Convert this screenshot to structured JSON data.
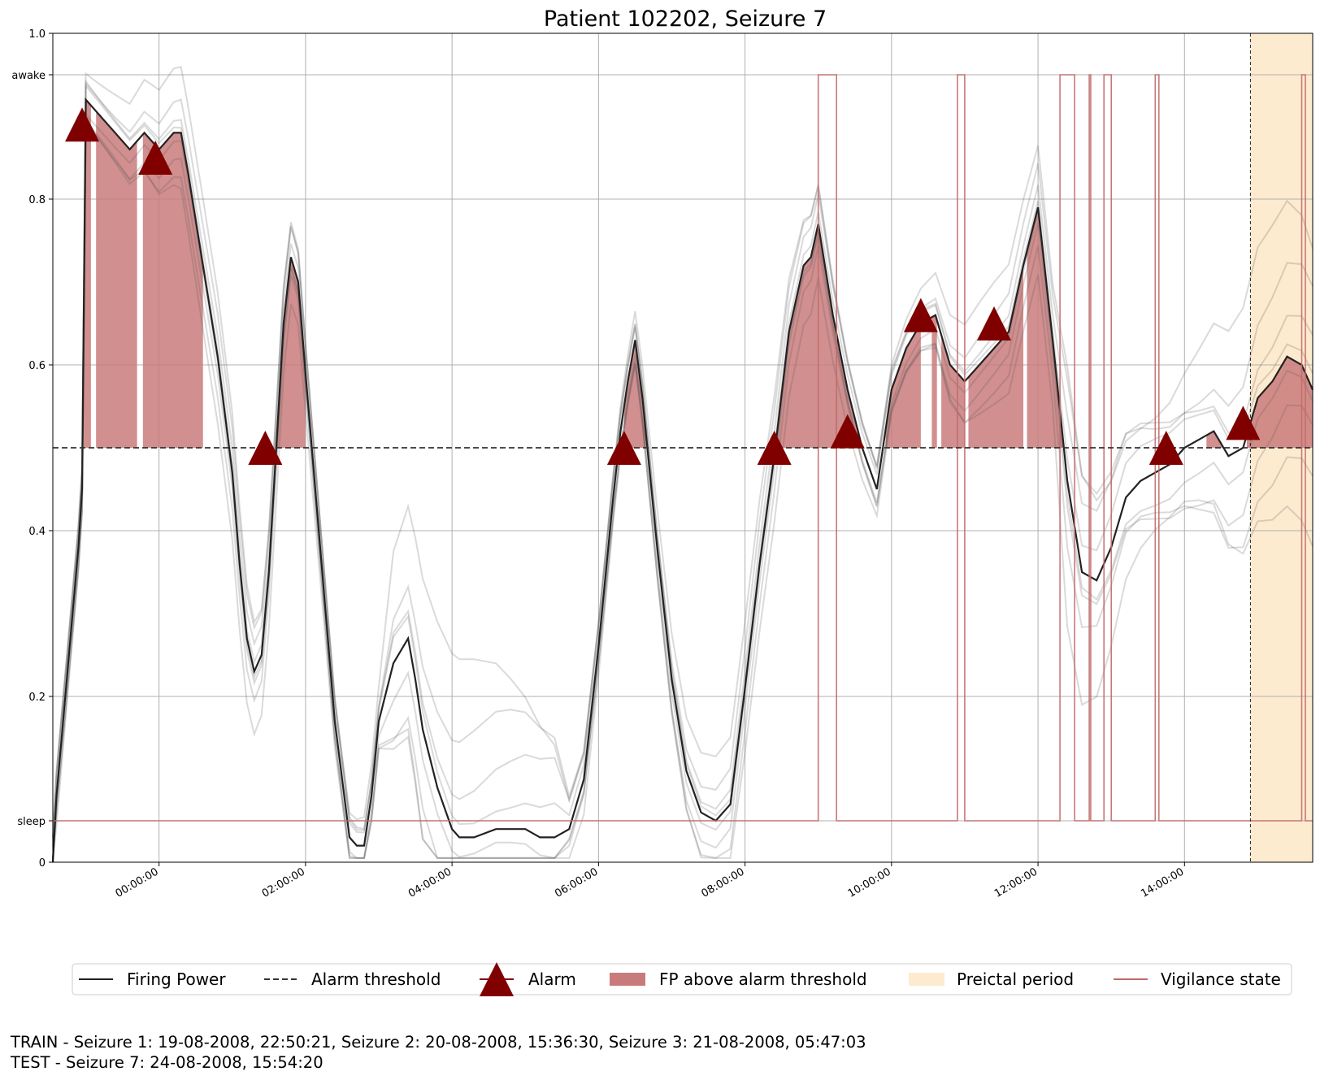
{
  "chart_data": {
    "type": "line",
    "title": "Patient 102202, Seizure 7",
    "xlabel": "",
    "ylabel": "",
    "x_unit": "hours relative to 00:00:00 (time of day)",
    "xlim": [
      -1.45,
      15.75
    ],
    "ylim": [
      0,
      1.0
    ],
    "y_ticks": [
      {
        "value": 0,
        "label": "0"
      },
      {
        "value": 0.05,
        "label": "sleep"
      },
      {
        "value": 0.2,
        "label": "0.2"
      },
      {
        "value": 0.4,
        "label": "0.4"
      },
      {
        "value": 0.6,
        "label": "0.6"
      },
      {
        "value": 0.8,
        "label": "0.8"
      },
      {
        "value": 0.95,
        "label": "awake"
      },
      {
        "value": 1.0,
        "label": "1.0"
      }
    ],
    "x_ticks": [
      {
        "value": 0,
        "label": "00:00:00"
      },
      {
        "value": 2,
        "label": "02:00:00"
      },
      {
        "value": 4,
        "label": "04:00:00"
      },
      {
        "value": 6,
        "label": "06:00:00"
      },
      {
        "value": 8,
        "label": "08:00:00"
      },
      {
        "value": 10,
        "label": "10:00:00"
      },
      {
        "value": 12,
        "label": "12:00:00"
      },
      {
        "value": 14,
        "label": "14:00:00"
      }
    ],
    "grid": true,
    "alarm_threshold": 0.5,
    "firing_power": {
      "name": "Firing Power",
      "x": [
        -1.45,
        -1.4,
        -1.3,
        -1.2,
        -1.1,
        -1.05,
        -1.0,
        -0.9,
        -0.8,
        -0.7,
        -0.6,
        -0.5,
        -0.4,
        -0.3,
        -0.2,
        -0.1,
        0.0,
        0.1,
        0.2,
        0.3,
        0.4,
        0.6,
        0.8,
        1.0,
        1.1,
        1.2,
        1.3,
        1.4,
        1.5,
        1.6,
        1.7,
        1.8,
        1.9,
        2.0,
        2.2,
        2.4,
        2.6,
        2.7,
        2.8,
        2.9,
        3.0,
        3.2,
        3.4,
        3.5,
        3.6,
        3.8,
        4.0,
        4.1,
        4.3,
        4.6,
        4.8,
        5.0,
        5.2,
        5.4,
        5.6,
        5.8,
        6.0,
        6.2,
        6.3,
        6.4,
        6.5,
        6.6,
        6.8,
        7.0,
        7.2,
        7.4,
        7.6,
        7.8,
        8.0,
        8.2,
        8.4,
        8.6,
        8.8,
        8.9,
        9.0,
        9.2,
        9.4,
        9.6,
        9.8,
        10.0,
        10.2,
        10.4,
        10.6,
        10.8,
        11.0,
        11.2,
        11.4,
        11.6,
        11.8,
        12.0,
        12.2,
        12.4,
        12.6,
        12.8,
        13.0,
        13.2,
        13.4,
        13.6,
        13.8,
        14.0,
        14.2,
        14.4,
        14.6,
        14.8,
        15.0,
        15.2,
        15.4,
        15.6,
        15.75
      ],
      "y": [
        0.0,
        0.08,
        0.18,
        0.28,
        0.38,
        0.45,
        0.92,
        0.91,
        0.9,
        0.89,
        0.88,
        0.87,
        0.86,
        0.87,
        0.88,
        0.87,
        0.86,
        0.87,
        0.88,
        0.88,
        0.83,
        0.72,
        0.61,
        0.47,
        0.36,
        0.27,
        0.23,
        0.25,
        0.35,
        0.5,
        0.65,
        0.73,
        0.7,
        0.59,
        0.38,
        0.17,
        0.03,
        0.02,
        0.02,
        0.08,
        0.17,
        0.24,
        0.27,
        0.22,
        0.16,
        0.09,
        0.04,
        0.03,
        0.03,
        0.04,
        0.04,
        0.04,
        0.03,
        0.03,
        0.04,
        0.1,
        0.26,
        0.44,
        0.52,
        0.58,
        0.63,
        0.56,
        0.38,
        0.22,
        0.11,
        0.06,
        0.05,
        0.07,
        0.21,
        0.36,
        0.49,
        0.64,
        0.72,
        0.73,
        0.77,
        0.66,
        0.57,
        0.5,
        0.45,
        0.57,
        0.62,
        0.65,
        0.66,
        0.6,
        0.58,
        0.6,
        0.62,
        0.64,
        0.72,
        0.79,
        0.63,
        0.46,
        0.35,
        0.34,
        0.38,
        0.44,
        0.46,
        0.47,
        0.48,
        0.5,
        0.51,
        0.52,
        0.49,
        0.5,
        0.56,
        0.58,
        0.61,
        0.6,
        0.57
      ]
    },
    "fp_above_threshold_segments": [
      [
        -1.03,
        -0.93
      ],
      [
        -0.86,
        -0.3
      ],
      [
        -0.22,
        0.6
      ],
      [
        1.45,
        2.0
      ],
      [
        6.35,
        6.65
      ],
      [
        8.4,
        9.6
      ],
      [
        9.92,
        10.4
      ],
      [
        10.55,
        10.62
      ],
      [
        10.68,
        11.0
      ],
      [
        11.05,
        11.8
      ],
      [
        11.85,
        12.45
      ],
      [
        12.5,
        12.55
      ],
      [
        14.3,
        14.7
      ],
      [
        14.85,
        15.75
      ]
    ],
    "alarms": {
      "name": "Alarm",
      "x": [
        -1.05,
        -0.05,
        1.45,
        6.35,
        8.4,
        9.4,
        10.4,
        11.4,
        13.75,
        14.8
      ],
      "y": [
        0.89,
        0.85,
        0.5,
        0.5,
        0.5,
        0.52,
        0.66,
        0.65,
        0.5,
        0.53
      ]
    },
    "preictal_period": {
      "name": "Preictal period",
      "start": 14.9,
      "end": 15.75
    },
    "vigilance_state": {
      "name": "Vigilance state",
      "x": [
        -1.45,
        9.0,
        9.0,
        9.25,
        9.25,
        10.9,
        10.9,
        11.0,
        11.0,
        12.3,
        12.3,
        12.5,
        12.5,
        12.7,
        12.7,
        12.72,
        12.72,
        12.9,
        12.9,
        13.0,
        13.0,
        13.6,
        13.6,
        13.65,
        13.65,
        15.6,
        15.6,
        15.65,
        15.65,
        15.75
      ],
      "y": [
        0.05,
        0.05,
        0.95,
        0.95,
        0.05,
        0.05,
        0.95,
        0.95,
        0.05,
        0.05,
        0.95,
        0.95,
        0.05,
        0.05,
        0.95,
        0.95,
        0.05,
        0.05,
        0.95,
        0.95,
        0.05,
        0.05,
        0.95,
        0.95,
        0.05,
        0.05,
        0.95,
        0.95,
        0.05,
        0.05
      ]
    },
    "legend": {
      "placement": "bottom",
      "entries": [
        "Firing Power",
        "Alarm threshold",
        "Alarm",
        "FP above alarm threshold",
        "Preictal period",
        "Vigilance state"
      ]
    },
    "colors": {
      "firing_power": "#222222",
      "threshold": "#333333",
      "alarm": "#800000",
      "fp_fill": "#c97b7b",
      "preictal": "#fdebd0",
      "vigilance": "#c26a6a",
      "grid": "#b0b0b0"
    }
  },
  "footer": {
    "train_line": "TRAIN - Seizure 1: 19-08-2008, 22:50:21, Seizure 2: 20-08-2008, 15:36:30, Seizure 3: 21-08-2008, 05:47:03",
    "test_line": "TEST - Seizure 7: 24-08-2008, 15:54:20"
  }
}
